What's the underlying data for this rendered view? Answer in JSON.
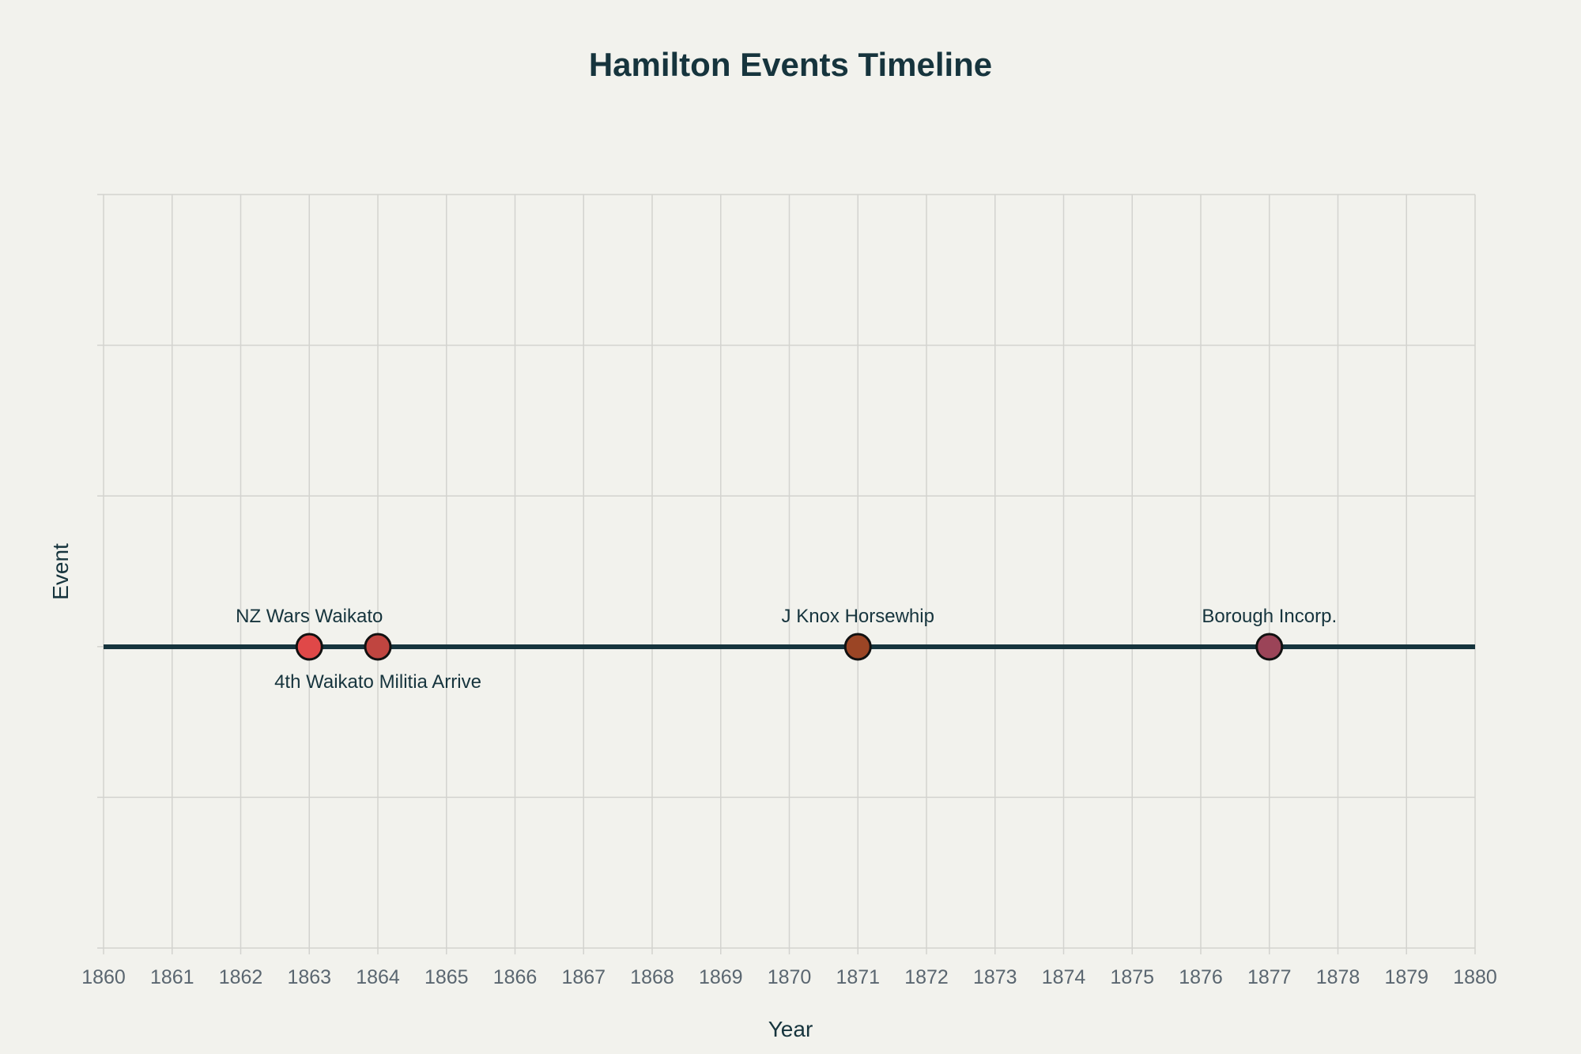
{
  "chart_data": {
    "type": "scatter",
    "title": "Hamilton Events Timeline",
    "xlabel": "Year",
    "ylabel": "Event",
    "xlim": [
      1860,
      1880
    ],
    "x_ticks": [
      1860,
      1861,
      1862,
      1863,
      1864,
      1865,
      1866,
      1867,
      1868,
      1869,
      1870,
      1871,
      1872,
      1873,
      1874,
      1875,
      1876,
      1877,
      1878,
      1879,
      1880
    ],
    "grid": true,
    "legend": "none",
    "line_color": "#16343d",
    "points": [
      {
        "x": 1863,
        "label": "NZ Wars Waikato",
        "color": "#e04848"
      },
      {
        "x": 1864,
        "label": "4th Waikato Militia Arrive",
        "color": "#c04540"
      },
      {
        "x": 1871,
        "label": "J Knox Horsewhip",
        "color": "#9b4525"
      },
      {
        "x": 1877,
        "label": "Borough Incorp.",
        "color": "#9b4458"
      }
    ]
  }
}
